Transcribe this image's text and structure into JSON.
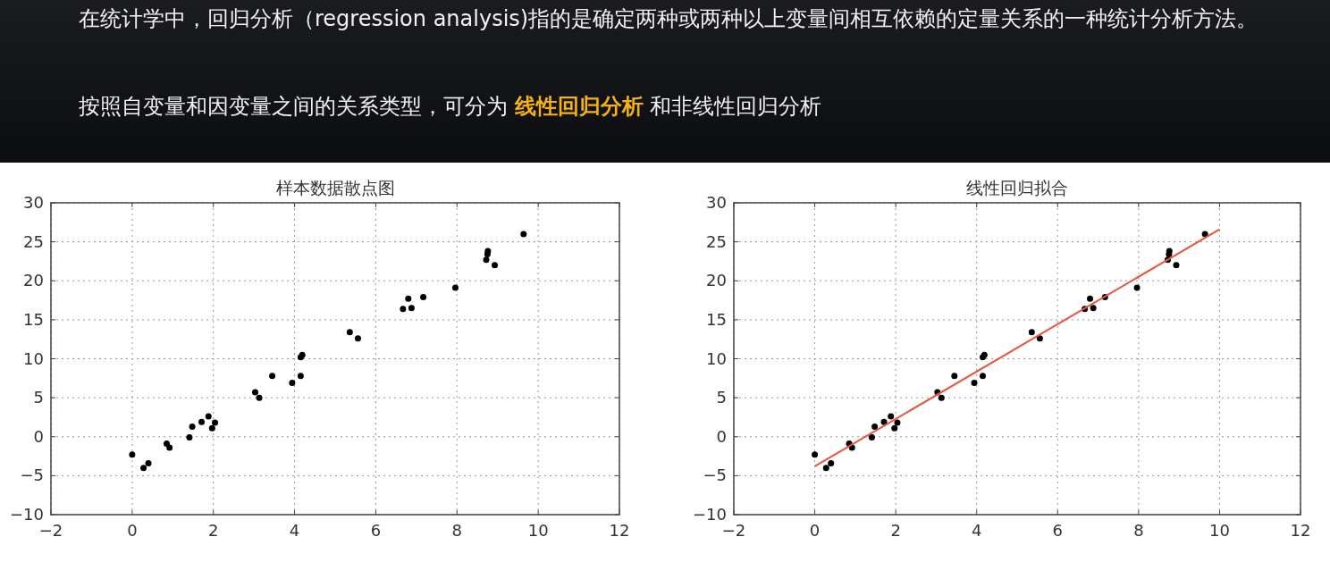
{
  "chart_data": [
    {
      "type": "other",
      "annotations": [
        "在统计学中，回归分析（regression analysis)指的是确定两种或两种以上变量间相互依赖的定量关系的一种统计分析方法。",
        "按照自变量和因变量之间的关系类型，可分为 **线性回归分析** 和非线性回归分析"
      ]
    },
    {
      "type": "scatter",
      "title": "样本数据散点图",
      "color": "#000000",
      "marker": "circle",
      "grid": true,
      "x": [
        0,
        0.28,
        0.4,
        0.85,
        0.92,
        1.41,
        1.48,
        1.71,
        1.88,
        1.97,
        2.04,
        3.03,
        3.13,
        3.45,
        3.94,
        4.15,
        4.15,
        4.19,
        5.36,
        5.56,
        6.67,
        6.8,
        6.88,
        7.17,
        7.96,
        8.72,
        8.75,
        8.76,
        8.93,
        9.64
      ],
      "values": [
        -2.3,
        -4,
        -3.4,
        -0.9,
        -1.4,
        -0.1,
        1.3,
        1.9,
        2.6,
        1.1,
        1.8,
        5.7,
        5,
        7.8,
        6.9,
        7.8,
        10.2,
        10.5,
        13.4,
        12.6,
        16.4,
        17.7,
        16.5,
        17.9,
        19.1,
        22.7,
        23.4,
        23.8,
        22,
        26
      ],
      "xlim": [
        -2,
        12
      ],
      "ylim": [
        -10,
        30
      ],
      "xticks": [
        -2,
        0,
        2,
        4,
        6,
        8,
        10,
        12
      ],
      "yticks": [
        -10,
        -5,
        0,
        5,
        10,
        15,
        20,
        25,
        30
      ]
    },
    {
      "type": "scatter",
      "title": "线性回归拟合",
      "grid": true,
      "series": [
        {
          "type": "scatter",
          "color": "#000000",
          "marker": "circle",
          "x": [
            0,
            0.28,
            0.4,
            0.85,
            0.92,
            1.41,
            1.48,
            1.71,
            1.88,
            1.97,
            2.04,
            3.03,
            3.13,
            3.45,
            3.94,
            4.15,
            4.15,
            4.19,
            5.36,
            5.56,
            6.67,
            6.8,
            6.88,
            7.17,
            7.96,
            8.72,
            8.75,
            8.76,
            8.93,
            9.64
          ],
          "values": [
            -2.3,
            -4,
            -3.4,
            -0.9,
            -1.4,
            -0.1,
            1.3,
            1.9,
            2.6,
            1.1,
            1.8,
            5.7,
            5,
            7.8,
            6.9,
            7.8,
            10.2,
            10.5,
            13.4,
            12.6,
            16.4,
            17.7,
            16.5,
            17.9,
            19.1,
            22.7,
            23.4,
            23.8,
            22,
            26
          ]
        },
        {
          "type": "line",
          "color": "#e8553e",
          "x": [
            0,
            10
          ],
          "values": [
            -3.8,
            26.6
          ]
        }
      ],
      "xlim": [
        -2,
        12
      ],
      "ylim": [
        -10,
        30
      ],
      "xticks": [
        -2,
        0,
        2,
        4,
        6,
        8,
        10,
        12
      ],
      "yticks": [
        -10,
        -5,
        0,
        5,
        10,
        15,
        20,
        25,
        30
      ]
    }
  ]
}
